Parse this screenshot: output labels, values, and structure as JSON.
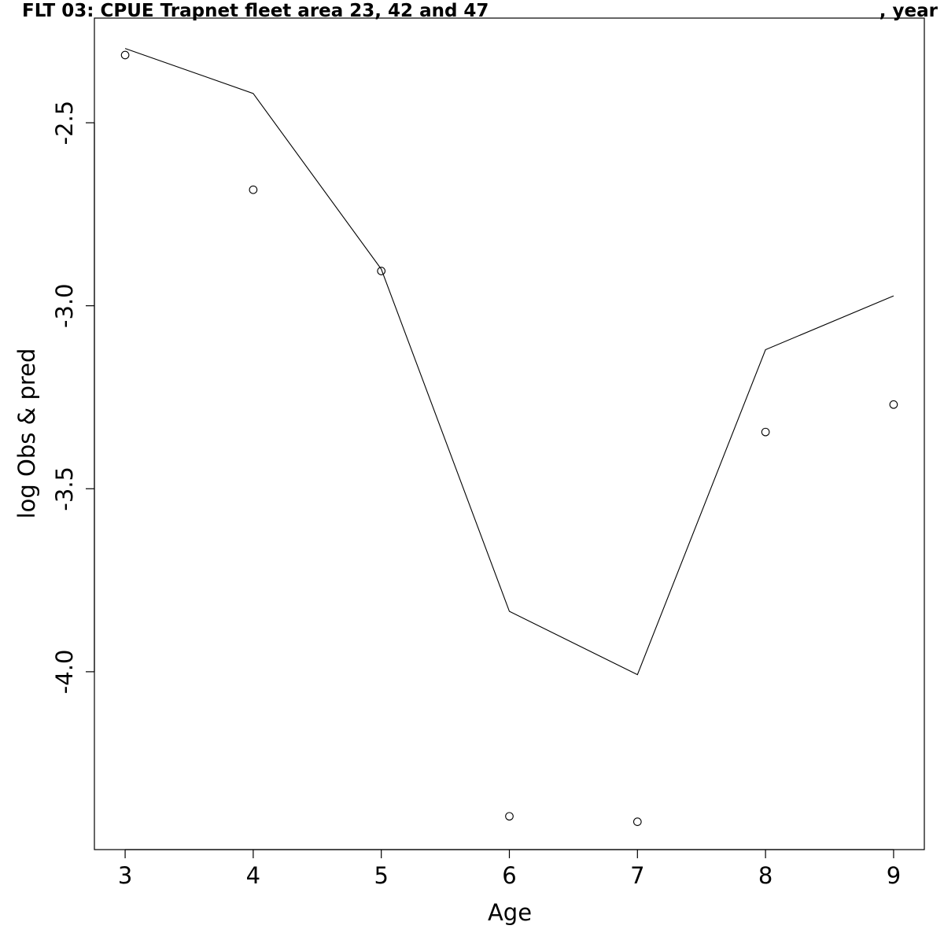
{
  "chart_data": {
    "type": "line",
    "title": "FLT 03: CPUE Trapnet fleet area 23, 42 and 47",
    "title_suffix": ", year",
    "xlabel": "Age",
    "ylabel": "log Obs & pred",
    "x": [
      3,
      4,
      5,
      6,
      7,
      8,
      9
    ],
    "xticks": [
      "3",
      "4",
      "5",
      "6",
      "7",
      "8",
      "9"
    ],
    "yticks": [
      -2.5,
      -3.0,
      -3.5,
      -4.0
    ],
    "ytick_labels": [
      "-2.5",
      "-3.0",
      "-3.5",
      "-4.0"
    ],
    "xlim": [
      2.76,
      9.24
    ],
    "ylim": [
      -4.486,
      -2.214
    ],
    "grid": false,
    "series": [
      {
        "kind": "line",
        "values": [
          -2.297,
          -2.42,
          -2.9,
          -3.835,
          -4.008,
          -3.12,
          -2.973
        ]
      },
      {
        "kind": "points",
        "marker": "open-circle",
        "values": [
          -2.315,
          -2.683,
          -2.905,
          -4.395,
          -4.41,
          -3.345,
          -3.27
        ]
      }
    ],
    "colors": {
      "line": "#000000",
      "marker": "#000000",
      "frame": "#000000"
    }
  }
}
